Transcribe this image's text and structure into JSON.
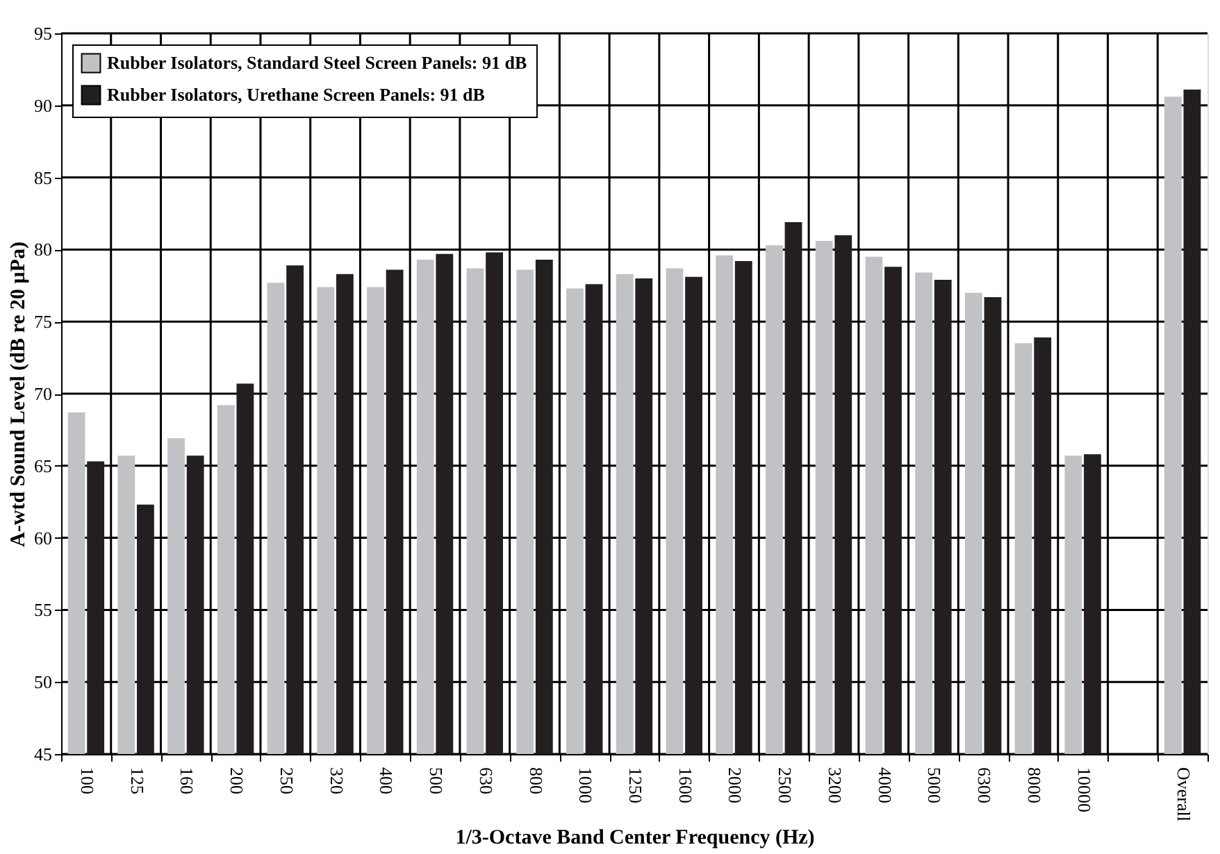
{
  "chart_data": {
    "type": "bar",
    "xlabel": "1/3-Octave Band Center Frequency (Hz)",
    "ylabel": "A-wtd Sound Level (dB re 20 μPa)",
    "categories": [
      "100",
      "125",
      "160",
      "200",
      "250",
      "320",
      "400",
      "500",
      "630",
      "800",
      "1000",
      "1250",
      "1600",
      "2000",
      "2500",
      "3200",
      "4000",
      "5000",
      "6300",
      "8000",
      "10000",
      null,
      "Overall"
    ],
    "series": [
      {
        "name": "Rubber Isolators, Standard Steel Screen Panels: 91 dB",
        "color": "#c0c2c6",
        "values": [
          68.7,
          65.7,
          66.9,
          69.2,
          77.7,
          77.4,
          77.4,
          79.3,
          78.7,
          78.6,
          77.3,
          78.3,
          78.7,
          79.6,
          80.3,
          80.6,
          79.5,
          78.4,
          77.0,
          73.5,
          65.7,
          null,
          90.6
        ]
      },
      {
        "name": "Rubber Isolators, Urethane Screen Panels: 91 dB",
        "color": "#231f20",
        "values": [
          65.3,
          62.3,
          65.7,
          70.7,
          78.9,
          78.3,
          78.6,
          79.7,
          79.8,
          79.3,
          77.6,
          78.0,
          78.1,
          79.2,
          81.9,
          81.0,
          78.8,
          77.9,
          76.7,
          73.9,
          65.8,
          null,
          91.1
        ]
      }
    ],
    "ylim": [
      45,
      95
    ],
    "yticks": [
      45,
      50,
      55,
      60,
      65,
      70,
      75,
      80,
      85,
      90,
      95
    ],
    "grid": true,
    "legend": "top left"
  }
}
